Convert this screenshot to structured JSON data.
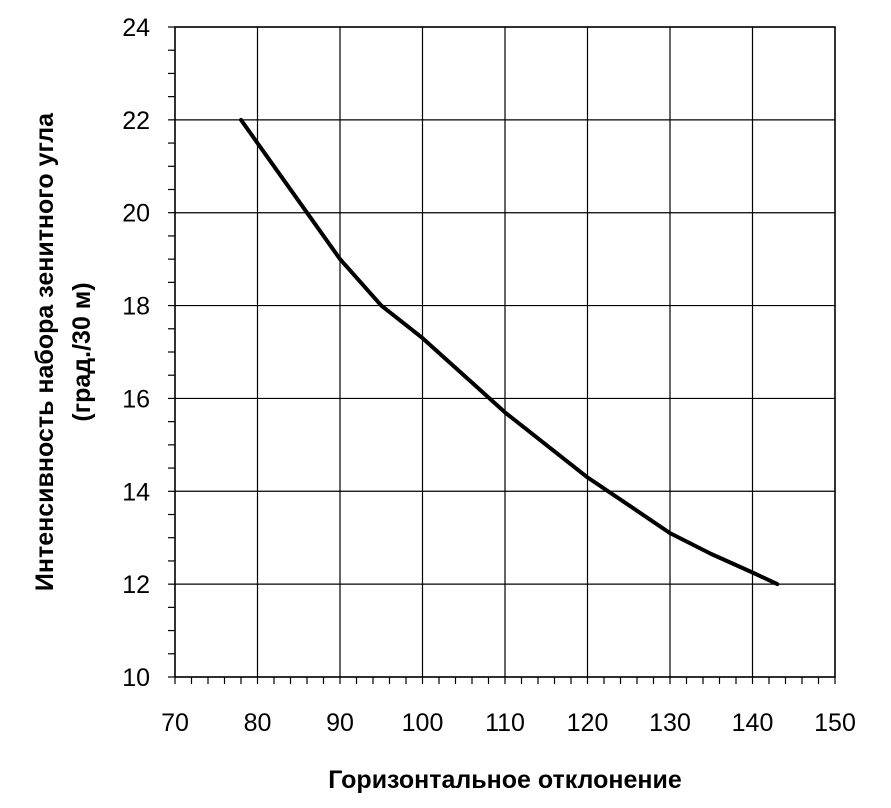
{
  "chart_data": {
    "type": "line",
    "title": "",
    "xlabel": "Горизонтальное отклонение",
    "ylabel_line1": "Интенсивность набора зенитного угла",
    "ylabel_line2": "(град./30 м)",
    "xlim": [
      70,
      150
    ],
    "ylim": [
      10,
      24
    ],
    "x_ticks": [
      70,
      80,
      90,
      100,
      110,
      120,
      130,
      140,
      150
    ],
    "y_ticks": [
      10,
      12,
      14,
      16,
      18,
      20,
      22,
      24
    ],
    "grid": true,
    "legend": "none",
    "series": [
      {
        "color": "#000000",
        "x": [
          78,
          82,
          86,
          90,
          95,
          100,
          105,
          110,
          115,
          120,
          125,
          130,
          135,
          140,
          143
        ],
        "y": [
          22.0,
          21.0,
          20.0,
          19.0,
          18.0,
          17.3,
          16.5,
          15.7,
          15.0,
          14.3,
          13.7,
          13.1,
          12.65,
          12.25,
          12.0
        ]
      }
    ]
  }
}
